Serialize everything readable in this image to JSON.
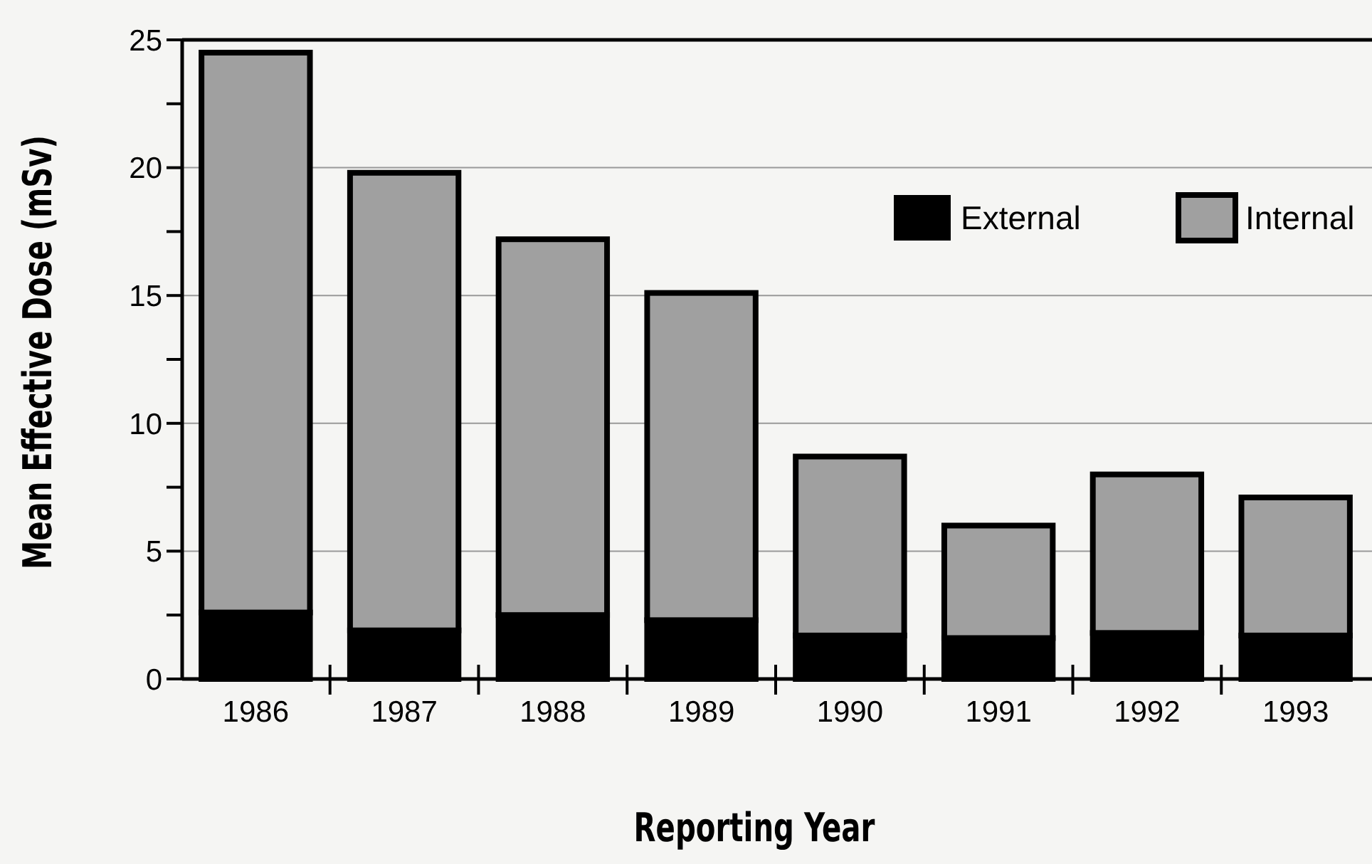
{
  "chart_data": {
    "type": "bar",
    "stacked": true,
    "xlabel": "Reporting Year",
    "ylabel": "Mean Effective Dose (mSv)",
    "categories": [
      "1986",
      "1987",
      "1988",
      "1989",
      "1990",
      "1991",
      "1992",
      "1993"
    ],
    "series": [
      {
        "name": "External",
        "color": "#000000",
        "values": [
          2.6,
          1.9,
          2.5,
          2.3,
          1.7,
          1.6,
          1.8,
          1.7
        ]
      },
      {
        "name": "Internal",
        "color": "#a0a0a0",
        "values": [
          21.9,
          17.9,
          14.7,
          12.8,
          7.0,
          4.4,
          6.2,
          5.4
        ]
      }
    ],
    "ylim": [
      0,
      25
    ],
    "yticks": [
      0,
      {
        "value": 2.5,
        "label": null
      },
      5,
      {
        "value": 7.5,
        "label": null
      },
      10,
      {
        "value": 12.5,
        "label": null
      },
      15,
      {
        "value": 17.5,
        "label": null
      },
      20,
      {
        "value": 22.5,
        "label": null
      },
      25
    ],
    "grid": "y",
    "legend": "top right"
  }
}
